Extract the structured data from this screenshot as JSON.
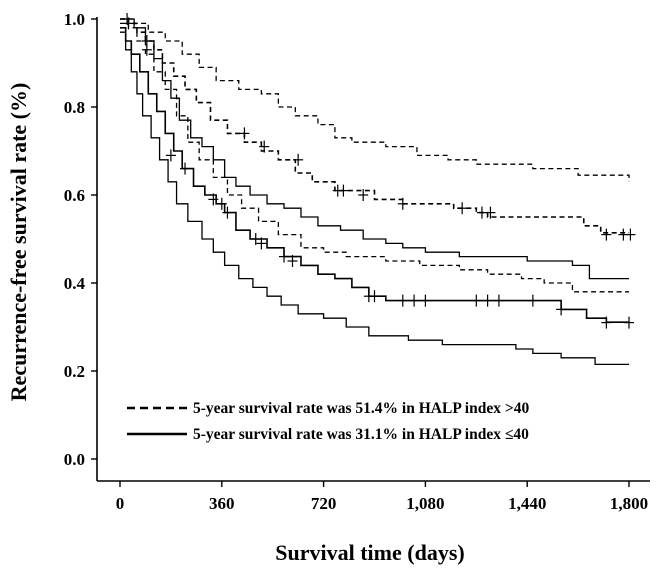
{
  "chart_data": {
    "type": "line",
    "subtype": "kaplan-meier step curves with 95% confidence bands",
    "xlabel": "Survival time (days)",
    "ylabel": "Recurrence-free survival rate  (%)",
    "xlim": [
      0,
      1800
    ],
    "ylim": [
      0,
      1.0
    ],
    "xticks": [
      0,
      360,
      720,
      1080,
      1440,
      1800
    ],
    "xtick_labels": [
      "0",
      "360",
      "720",
      "1,080",
      "1,440",
      "1,800"
    ],
    "yticks": [
      0.0,
      0.2,
      0.4,
      0.6,
      0.8,
      1.0
    ],
    "ytick_labels": [
      "0.0",
      "0.2",
      "0.4",
      "0.6",
      "0.8",
      "1.0"
    ],
    "legend": [
      {
        "style": "dashed",
        "label": "5-year survival rate was 51.4% in HALP index >40"
      },
      {
        "style": "solid",
        "label": "5-year survival rate was 31.1% in HALP index ≤40"
      }
    ],
    "series": [
      {
        "name": "HALP index >40",
        "style": "dashed",
        "role": "estimate",
        "steps": [
          [
            0,
            1.0
          ],
          [
            30,
            0.99
          ],
          [
            60,
            0.97
          ],
          [
            90,
            0.95
          ],
          [
            120,
            0.93
          ],
          [
            150,
            0.9
          ],
          [
            190,
            0.87
          ],
          [
            230,
            0.84
          ],
          [
            270,
            0.81
          ],
          [
            320,
            0.77
          ],
          [
            380,
            0.74
          ],
          [
            440,
            0.72
          ],
          [
            500,
            0.7
          ],
          [
            560,
            0.68
          ],
          [
            620,
            0.65
          ],
          [
            680,
            0.63
          ],
          [
            760,
            0.61
          ],
          [
            900,
            0.59
          ],
          [
            1000,
            0.58
          ],
          [
            1180,
            0.57
          ],
          [
            1260,
            0.56
          ],
          [
            1300,
            0.55
          ],
          [
            1640,
            0.53
          ],
          [
            1700,
            0.514
          ],
          [
            1800,
            0.514
          ]
        ],
        "censored": [
          [
            25,
            1.0
          ],
          [
            95,
            0.95
          ],
          [
            440,
            0.74
          ],
          [
            510,
            0.71
          ],
          [
            630,
            0.68
          ],
          [
            770,
            0.61
          ],
          [
            790,
            0.61
          ],
          [
            860,
            0.6
          ],
          [
            1000,
            0.58
          ],
          [
            1210,
            0.57
          ],
          [
            1280,
            0.56
          ],
          [
            1310,
            0.56
          ],
          [
            1720,
            0.51
          ],
          [
            1780,
            0.51
          ],
          [
            1805,
            0.51
          ]
        ]
      },
      {
        "name": "HALP index >40 upper 95% CI",
        "style": "dashed",
        "role": "ci",
        "steps": [
          [
            0,
            1.0
          ],
          [
            50,
            0.99
          ],
          [
            100,
            0.97
          ],
          [
            160,
            0.95
          ],
          [
            220,
            0.92
          ],
          [
            280,
            0.89
          ],
          [
            340,
            0.86
          ],
          [
            420,
            0.84
          ],
          [
            500,
            0.83
          ],
          [
            560,
            0.8
          ],
          [
            620,
            0.78
          ],
          [
            700,
            0.76
          ],
          [
            760,
            0.73
          ],
          [
            820,
            0.72
          ],
          [
            940,
            0.71
          ],
          [
            1050,
            0.69
          ],
          [
            1160,
            0.68
          ],
          [
            1260,
            0.67
          ],
          [
            1460,
            0.66
          ],
          [
            1620,
            0.645
          ],
          [
            1800,
            0.63
          ]
        ]
      },
      {
        "name": "HALP index >40 lower 95% CI",
        "style": "dashed",
        "role": "ci",
        "steps": [
          [
            0,
            0.99
          ],
          [
            30,
            0.98
          ],
          [
            60,
            0.95
          ],
          [
            90,
            0.92
          ],
          [
            120,
            0.88
          ],
          [
            160,
            0.84
          ],
          [
            200,
            0.78
          ],
          [
            240,
            0.72
          ],
          [
            280,
            0.68
          ],
          [
            330,
            0.64
          ],
          [
            380,
            0.6
          ],
          [
            430,
            0.57
          ],
          [
            490,
            0.54
          ],
          [
            560,
            0.51
          ],
          [
            640,
            0.48
          ],
          [
            720,
            0.47
          ],
          [
            800,
            0.46
          ],
          [
            940,
            0.45
          ],
          [
            1060,
            0.44
          ],
          [
            1200,
            0.43
          ],
          [
            1300,
            0.42
          ],
          [
            1420,
            0.41
          ],
          [
            1500,
            0.4
          ],
          [
            1600,
            0.38
          ],
          [
            1800,
            0.38
          ]
        ]
      },
      {
        "name": "HALP index ≤40",
        "style": "solid",
        "role": "estimate",
        "steps": [
          [
            0,
            0.98
          ],
          [
            20,
            0.95
          ],
          [
            40,
            0.92
          ],
          [
            70,
            0.88
          ],
          [
            100,
            0.83
          ],
          [
            130,
            0.79
          ],
          [
            160,
            0.74
          ],
          [
            190,
            0.7
          ],
          [
            220,
            0.66
          ],
          [
            260,
            0.62
          ],
          [
            300,
            0.6
          ],
          [
            340,
            0.58
          ],
          [
            370,
            0.56
          ],
          [
            410,
            0.52
          ],
          [
            460,
            0.5
          ],
          [
            520,
            0.48
          ],
          [
            580,
            0.46
          ],
          [
            640,
            0.44
          ],
          [
            700,
            0.42
          ],
          [
            760,
            0.41
          ],
          [
            820,
            0.39
          ],
          [
            880,
            0.37
          ],
          [
            940,
            0.36
          ],
          [
            1500,
            0.36
          ],
          [
            1560,
            0.34
          ],
          [
            1650,
            0.32
          ],
          [
            1720,
            0.311
          ],
          [
            1800,
            0.311
          ]
        ],
        "censored": [
          [
            30,
            0.99
          ],
          [
            95,
            0.93
          ],
          [
            180,
            0.69
          ],
          [
            230,
            0.66
          ],
          [
            330,
            0.59
          ],
          [
            360,
            0.58
          ],
          [
            380,
            0.56
          ],
          [
            480,
            0.5
          ],
          [
            500,
            0.49
          ],
          [
            580,
            0.46
          ],
          [
            610,
            0.45
          ],
          [
            880,
            0.37
          ],
          [
            900,
            0.37
          ],
          [
            1000,
            0.36
          ],
          [
            1040,
            0.36
          ],
          [
            1080,
            0.36
          ],
          [
            1260,
            0.36
          ],
          [
            1300,
            0.36
          ],
          [
            1340,
            0.36
          ],
          [
            1460,
            0.36
          ],
          [
            1560,
            0.34
          ],
          [
            1720,
            0.31
          ],
          [
            1800,
            0.31
          ]
        ]
      },
      {
        "name": "HALP index ≤40 upper 95% CI",
        "style": "solid",
        "role": "ci",
        "steps": [
          [
            0,
            1.0
          ],
          [
            50,
            0.98
          ],
          [
            90,
            0.95
          ],
          [
            120,
            0.91
          ],
          [
            150,
            0.86
          ],
          [
            180,
            0.82
          ],
          [
            210,
            0.77
          ],
          [
            250,
            0.73
          ],
          [
            290,
            0.71
          ],
          [
            330,
            0.68
          ],
          [
            370,
            0.64
          ],
          [
            410,
            0.62
          ],
          [
            460,
            0.6
          ],
          [
            520,
            0.58
          ],
          [
            580,
            0.57
          ],
          [
            640,
            0.55
          ],
          [
            700,
            0.53
          ],
          [
            780,
            0.52
          ],
          [
            860,
            0.5
          ],
          [
            940,
            0.49
          ],
          [
            1000,
            0.48
          ],
          [
            1080,
            0.47
          ],
          [
            1200,
            0.46
          ],
          [
            1380,
            0.46
          ],
          [
            1440,
            0.45
          ],
          [
            1600,
            0.44
          ],
          [
            1660,
            0.41
          ],
          [
            1800,
            0.41
          ]
        ]
      },
      {
        "name": "HALP index ≤40 lower 95% CI",
        "style": "solid",
        "role": "ci",
        "steps": [
          [
            0,
            0.97
          ],
          [
            20,
            0.93
          ],
          [
            40,
            0.88
          ],
          [
            60,
            0.83
          ],
          [
            80,
            0.78
          ],
          [
            110,
            0.73
          ],
          [
            140,
            0.68
          ],
          [
            170,
            0.63
          ],
          [
            200,
            0.58
          ],
          [
            240,
            0.54
          ],
          [
            290,
            0.5
          ],
          [
            330,
            0.47
          ],
          [
            370,
            0.44
          ],
          [
            420,
            0.41
          ],
          [
            470,
            0.39
          ],
          [
            520,
            0.37
          ],
          [
            570,
            0.35
          ],
          [
            630,
            0.33
          ],
          [
            720,
            0.32
          ],
          [
            800,
            0.3
          ],
          [
            880,
            0.28
          ],
          [
            1020,
            0.27
          ],
          [
            1140,
            0.26
          ],
          [
            1400,
            0.25
          ],
          [
            1460,
            0.24
          ],
          [
            1560,
            0.23
          ],
          [
            1680,
            0.215
          ],
          [
            1800,
            0.215
          ]
        ]
      }
    ]
  }
}
